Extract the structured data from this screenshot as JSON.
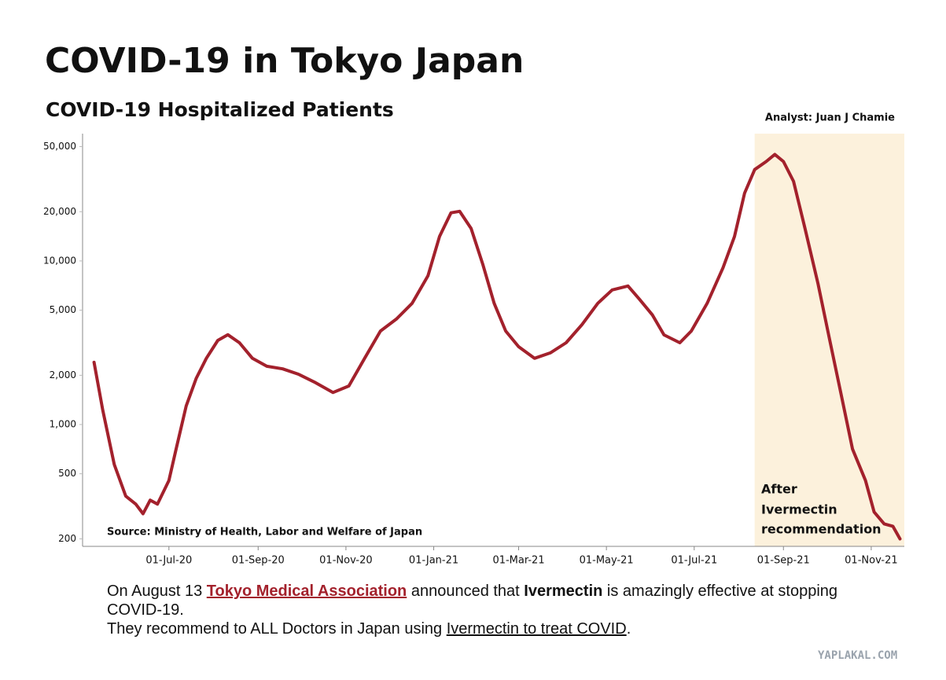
{
  "chart_data": {
    "type": "line",
    "title": "COVID-19 in Tokyo Japan",
    "subtitle": "COVID-19 Hospitalized Patients",
    "analyst": "Analyst: Juan J Chamie",
    "source": "Source: Ministry of Health, Labor and Welfare of Japan",
    "annotation": [
      "After",
      "Ivermectin",
      "recommendation"
    ],
    "color": "#a3212c",
    "yscale": "log",
    "grid": false,
    "highlight": {
      "x": [
        "12-Aug-21",
        "24-Nov-21"
      ],
      "color": "#fcf1dc"
    },
    "xlim": [
      "02-May-20",
      "24-Nov-21"
    ],
    "xticks": [
      "01-Jul-20",
      "01-Sep-20",
      "01-Nov-20",
      "01-Jan-21",
      "01-Mar-21",
      "01-May-21",
      "01-Jul-21",
      "01-Sep-21",
      "01-Nov-21"
    ],
    "ylim": [
      180,
      60000
    ],
    "yticks": [
      200,
      500,
      {
        "value": 1000,
        "label": "1,000"
      },
      {
        "value": 2000,
        "label": "2,000"
      },
      {
        "value": 5000,
        "label": "5,000"
      },
      {
        "value": 10000,
        "label": "10,000"
      },
      {
        "value": 20000,
        "label": "20,000"
      },
      {
        "value": 50000,
        "label": "50,000"
      }
    ],
    "x": [
      "10-May-20",
      "16-May-20",
      "24-May-20",
      "01-Jun-20",
      "08-Jun-20",
      "13-Jun-20",
      "18-Jun-20",
      "23-Jun-20",
      "01-Jul-20",
      "06-Jul-20",
      "13-Jul-20",
      "20-Jul-20",
      "27-Jul-20",
      "04-Aug-20",
      "11-Aug-20",
      "19-Aug-20",
      "28-Aug-20",
      "07-Sep-20",
      "18-Sep-20",
      "29-Sep-20",
      "10-Oct-20",
      "23-Oct-20",
      "03-Nov-20",
      "14-Nov-20",
      "25-Nov-20",
      "06-Dec-20",
      "17-Dec-20",
      "28-Dec-20",
      "05-Jan-21",
      "13-Jan-21",
      "19-Jan-21",
      "27-Jan-21",
      "04-Feb-21",
      "12-Feb-21",
      "20-Feb-21",
      "01-Mar-21",
      "12-Mar-21",
      "23-Mar-21",
      "03-Apr-21",
      "14-Apr-21",
      "25-Apr-21",
      "05-May-21",
      "16-May-21",
      "24-May-21",
      "02-Jun-21",
      "10-Jun-21",
      "21-Jun-21",
      "29-Jun-21",
      "10-Jul-21",
      "21-Jul-21",
      "29-Jul-21",
      "05-Aug-21",
      "12-Aug-21",
      "20-Aug-21",
      "26-Aug-21",
      "01-Sep-21",
      "08-Sep-21",
      "16-Sep-21",
      "25-Sep-21",
      "03-Oct-21",
      "11-Oct-21",
      "19-Oct-21",
      "28-Oct-21",
      "03-Nov-21",
      "10-Nov-21",
      "16-Nov-21",
      "21-Nov-21"
    ],
    "values": [
      2400,
      1230,
      570,
      365,
      326,
      285,
      345,
      326,
      455,
      710,
      1300,
      1920,
      2540,
      3270,
      3540,
      3160,
      2540,
      2270,
      2190,
      2030,
      1820,
      1570,
      1720,
      2540,
      3730,
      4410,
      5510,
      8110,
      14100,
      19700,
      20100,
      15800,
      9590,
      5510,
      3730,
      2990,
      2540,
      2740,
      3160,
      4080,
      5510,
      6650,
      7030,
      5820,
      4670,
      3530,
      3160,
      3730,
      5510,
      9080,
      14100,
      26000,
      36200,
      40500,
      44800,
      40500,
      30700,
      15800,
      7270,
      3340,
      1540,
      708,
      455,
      292,
      247,
      239,
      200
    ]
  },
  "caption": [
    [
      "On August 13 ",
      "Tokyo Medical Association",
      " announced that ",
      "Ivermectin",
      " is amazingly effective at stopping COVID-19."
    ],
    [
      "They recommend to ALL Doctors in Japan using ",
      "Ivermectin to treat COVID",
      "."
    ]
  ],
  "watermark": "YAPLAKAL.COM"
}
